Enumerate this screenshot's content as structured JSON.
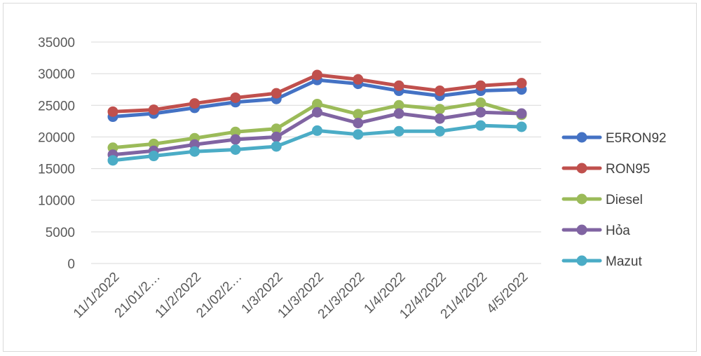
{
  "chart_data": {
    "type": "line",
    "x": [
      "11/1/2022",
      "21/01/2…",
      "11/2/2022",
      "21/02/2…",
      "1/3/2022",
      "11/3/2022",
      "21/3/2022",
      "1/4/2022",
      "12/4/2022",
      "21/4/2022",
      "4/5/2022"
    ],
    "ylim": [
      0,
      35000
    ],
    "yticks": [
      "35000",
      "30000",
      "25000",
      "20000",
      "15000",
      "10000",
      "5000",
      "0"
    ],
    "grid": true,
    "legend_position": "right",
    "series": [
      {
        "name": "E5RON92",
        "color": "#4472c4",
        "values": [
          23200,
          23700,
          24600,
          25500,
          26000,
          29000,
          28400,
          27300,
          26500,
          27300,
          27500
        ]
      },
      {
        "name": "RON95",
        "color": "#c0504d",
        "values": [
          24000,
          24300,
          25300,
          26200,
          26900,
          29800,
          29100,
          28100,
          27300,
          28100,
          28500
        ]
      },
      {
        "name": "Diesel",
        "color": "#9bbb59",
        "values": [
          18300,
          18900,
          19800,
          20800,
          21300,
          25200,
          23600,
          25000,
          24400,
          25400,
          23500
        ]
      },
      {
        "name": "Hỏa",
        "color": "#8064a2",
        "values": [
          17200,
          17800,
          18800,
          19600,
          20000,
          23900,
          22200,
          23700,
          22900,
          23900,
          23700
        ]
      },
      {
        "name": "Mazut",
        "color": "#4bacc6",
        "values": [
          16300,
          17000,
          17700,
          18000,
          18500,
          21000,
          20400,
          20900,
          20900,
          21800,
          21600
        ]
      }
    ]
  }
}
